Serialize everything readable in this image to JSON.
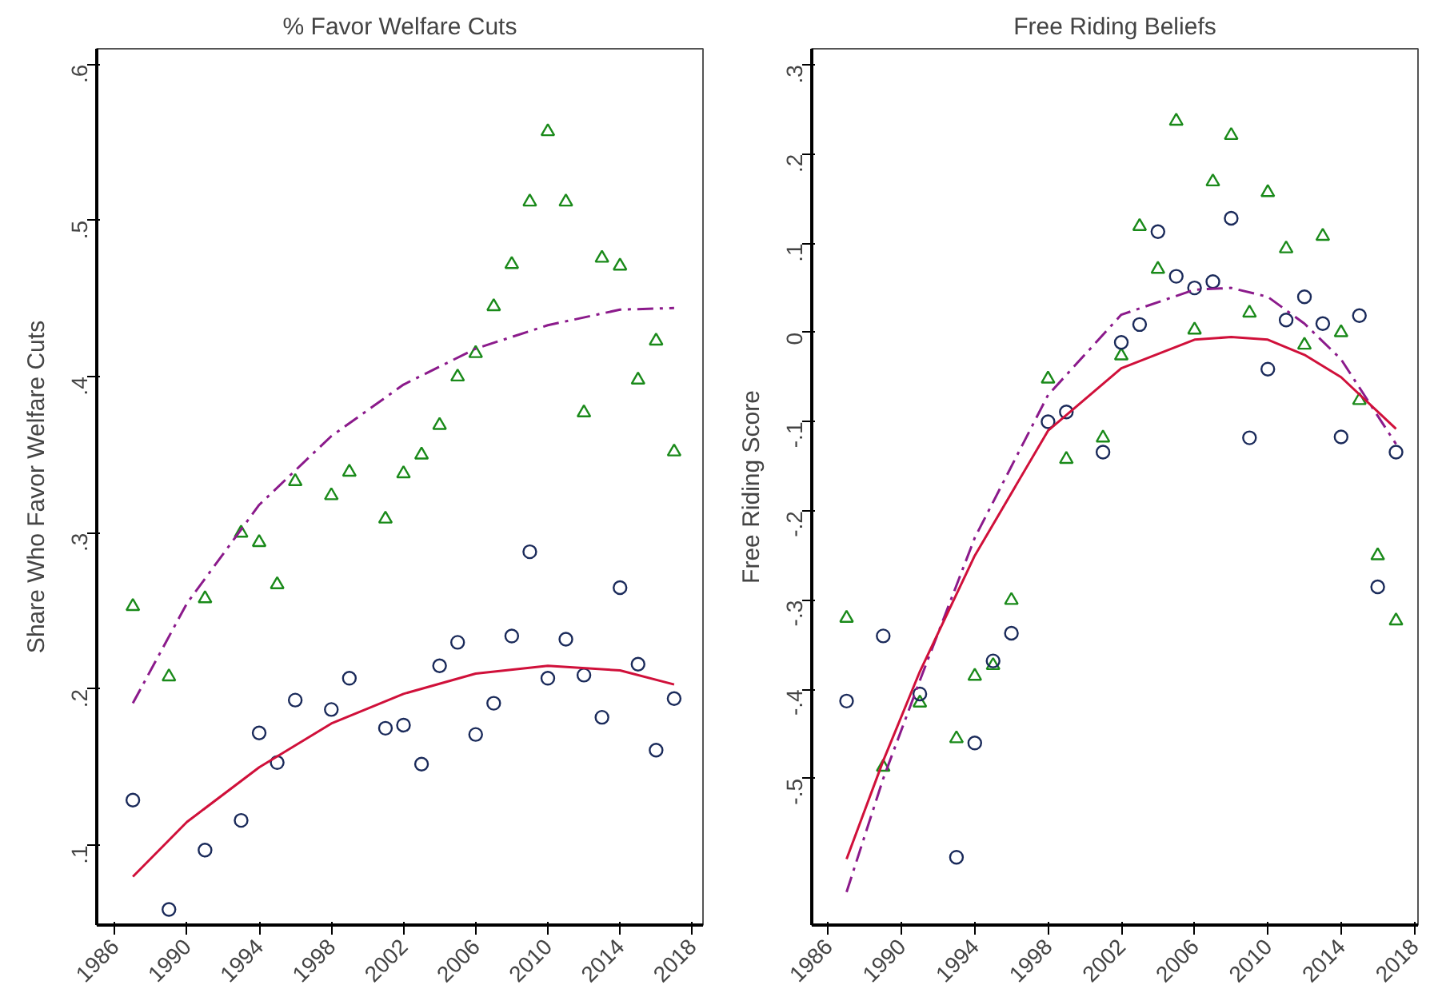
{
  "chart_data": [
    {
      "type": "scatter",
      "title": "% Favor Welfare Cuts",
      "ylabel": "Share Who Favor Welfare Cuts",
      "xlim": [
        1985,
        2018.6
      ],
      "ylim": [
        0.049,
        0.61
      ],
      "xticks": [
        1986,
        1990,
        1994,
        1998,
        2002,
        2006,
        2010,
        2014,
        2018
      ],
      "yticks": [
        {
          "value": 0.1,
          "label": ".1"
        },
        {
          "value": 0.2,
          "label": ".2"
        },
        {
          "value": 0.3,
          "label": ".3"
        },
        {
          "value": 0.4,
          "label": ".4"
        },
        {
          "value": 0.5,
          "label": ".5"
        },
        {
          "value": 0.6,
          "label": ".6"
        }
      ],
      "grid": false,
      "series": [
        {
          "marker": "triangle",
          "color": "#1a8a1a",
          "x": [
            1987,
            1989,
            1991,
            1993,
            1994,
            1995,
            1996,
            1998,
            1999,
            2001,
            2002,
            2003,
            2004,
            2005,
            2006,
            2007,
            2008,
            2009,
            2010,
            2011,
            2012,
            2013,
            2014,
            2015,
            2016,
            2017
          ],
          "values": [
            0.253,
            0.208,
            0.258,
            0.3,
            0.294,
            0.267,
            0.333,
            0.324,
            0.339,
            0.309,
            0.338,
            0.35,
            0.369,
            0.4,
            0.415,
            0.445,
            0.472,
            0.512,
            0.557,
            0.512,
            0.377,
            0.476,
            0.471,
            0.398,
            0.423,
            0.352
          ]
        },
        {
          "marker": "circle",
          "color": "#1a2a5a",
          "x": [
            1987,
            1989,
            1991,
            1993,
            1994,
            1995,
            1996,
            1998,
            1999,
            2001,
            2002,
            2003,
            2004,
            2005,
            2006,
            2007,
            2008,
            2009,
            2010,
            2011,
            2012,
            2013,
            2014,
            2015,
            2016,
            2017
          ],
          "values": [
            0.129,
            0.059,
            0.097,
            0.116,
            0.172,
            0.153,
            0.193,
            0.187,
            0.207,
            0.175,
            0.177,
            0.152,
            0.215,
            0.23,
            0.171,
            0.191,
            0.234,
            0.288,
            0.207,
            0.232,
            0.209,
            0.182,
            0.265,
            0.216,
            0.161,
            0.194
          ]
        },
        {
          "type": "line",
          "line_style": "dashed",
          "color": "#8b1a8b",
          "x": [
            1987,
            1990,
            1994,
            1998,
            2002,
            2006,
            2010,
            2014,
            2017
          ],
          "values": [
            0.191,
            0.255,
            0.318,
            0.362,
            0.395,
            0.418,
            0.433,
            0.443,
            0.444
          ]
        },
        {
          "type": "line",
          "line_style": "solid",
          "color": "#d0103a",
          "x": [
            1987,
            1990,
            1994,
            1998,
            2002,
            2006,
            2010,
            2014,
            2017
          ],
          "values": [
            0.08,
            0.115,
            0.15,
            0.178,
            0.197,
            0.21,
            0.215,
            0.212,
            0.203
          ]
        }
      ]
    },
    {
      "type": "scatter",
      "title": "Free Riding Beliefs",
      "ylabel": "Free Riding Score",
      "xlim": [
        1985.1,
        2018.2
      ],
      "ylim": [
        -0.664,
        0.318
      ],
      "xticks": [
        1986,
        1990,
        1994,
        1998,
        2002,
        2006,
        2010,
        2014,
        2018
      ],
      "yticks": [
        {
          "value": -0.5,
          "label": "-.5"
        },
        {
          "value": -0.4,
          "label": "-.4"
        },
        {
          "value": -0.3,
          "label": "-.3"
        },
        {
          "value": -0.2,
          "label": "-.2"
        },
        {
          "value": -0.1,
          "label": "-.1"
        },
        0,
        {
          "value": 0.1,
          "label": ".1"
        },
        {
          "value": 0.2,
          "label": ".2"
        },
        {
          "value": 0.3,
          "label": ".3"
        }
      ],
      "grid": false,
      "series": [
        {
          "marker": "triangle",
          "color": "#1a8a1a",
          "x": [
            1987,
            1989,
            1991,
            1993,
            1994,
            1995,
            1996,
            1998,
            1999,
            2001,
            2002,
            2003,
            2004,
            2005,
            2006,
            2007,
            2008,
            2009,
            2010,
            2011,
            2012,
            2013,
            2014,
            2015,
            2016,
            2017
          ],
          "values": [
            -0.32,
            -0.487,
            -0.415,
            -0.455,
            -0.385,
            -0.373,
            -0.3,
            -0.052,
            -0.142,
            -0.118,
            -0.026,
            0.119,
            0.071,
            0.237,
            0.003,
            0.169,
            0.221,
            0.022,
            0.157,
            0.094,
            -0.014,
            0.108,
            0.0,
            -0.076,
            -0.25,
            -0.323
          ]
        },
        {
          "marker": "circle",
          "color": "#1a2a5a",
          "x": [
            1987,
            1989,
            1991,
            1993,
            1994,
            1995,
            1996,
            1998,
            1999,
            2001,
            2002,
            2003,
            2004,
            2005,
            2006,
            2007,
            2008,
            2009,
            2010,
            2011,
            2012,
            2013,
            2014,
            2015,
            2016,
            2017
          ],
          "values": [
            -0.413,
            -0.34,
            -0.405,
            -0.588,
            -0.46,
            -0.368,
            -0.337,
            -0.1,
            -0.089,
            -0.134,
            -0.011,
            0.009,
            0.113,
            0.063,
            0.05,
            0.057,
            0.128,
            -0.118,
            -0.041,
            0.014,
            0.04,
            0.01,
            -0.117,
            0.019,
            -0.285,
            -0.134
          ]
        },
        {
          "type": "line",
          "line_style": "dashed",
          "color": "#8b1a8b",
          "x": [
            1987,
            1989,
            1991,
            1994,
            1998,
            2002,
            2006,
            2008,
            2010,
            2012,
            2014,
            2017
          ],
          "values": [
            -0.627,
            -0.5,
            -0.39,
            -0.23,
            -0.07,
            0.02,
            0.048,
            0.05,
            0.04,
            0.01,
            -0.03,
            -0.125
          ]
        },
        {
          "type": "line",
          "line_style": "solid",
          "color": "#d0103a",
          "x": [
            1987,
            1989,
            1991,
            1994,
            1998,
            2002,
            2006,
            2008,
            2010,
            2012,
            2014,
            2017
          ],
          "values": [
            -0.59,
            -0.48,
            -0.38,
            -0.25,
            -0.11,
            -0.04,
            -0.008,
            -0.005,
            -0.008,
            -0.025,
            -0.05,
            -0.108
          ]
        }
      ]
    }
  ]
}
